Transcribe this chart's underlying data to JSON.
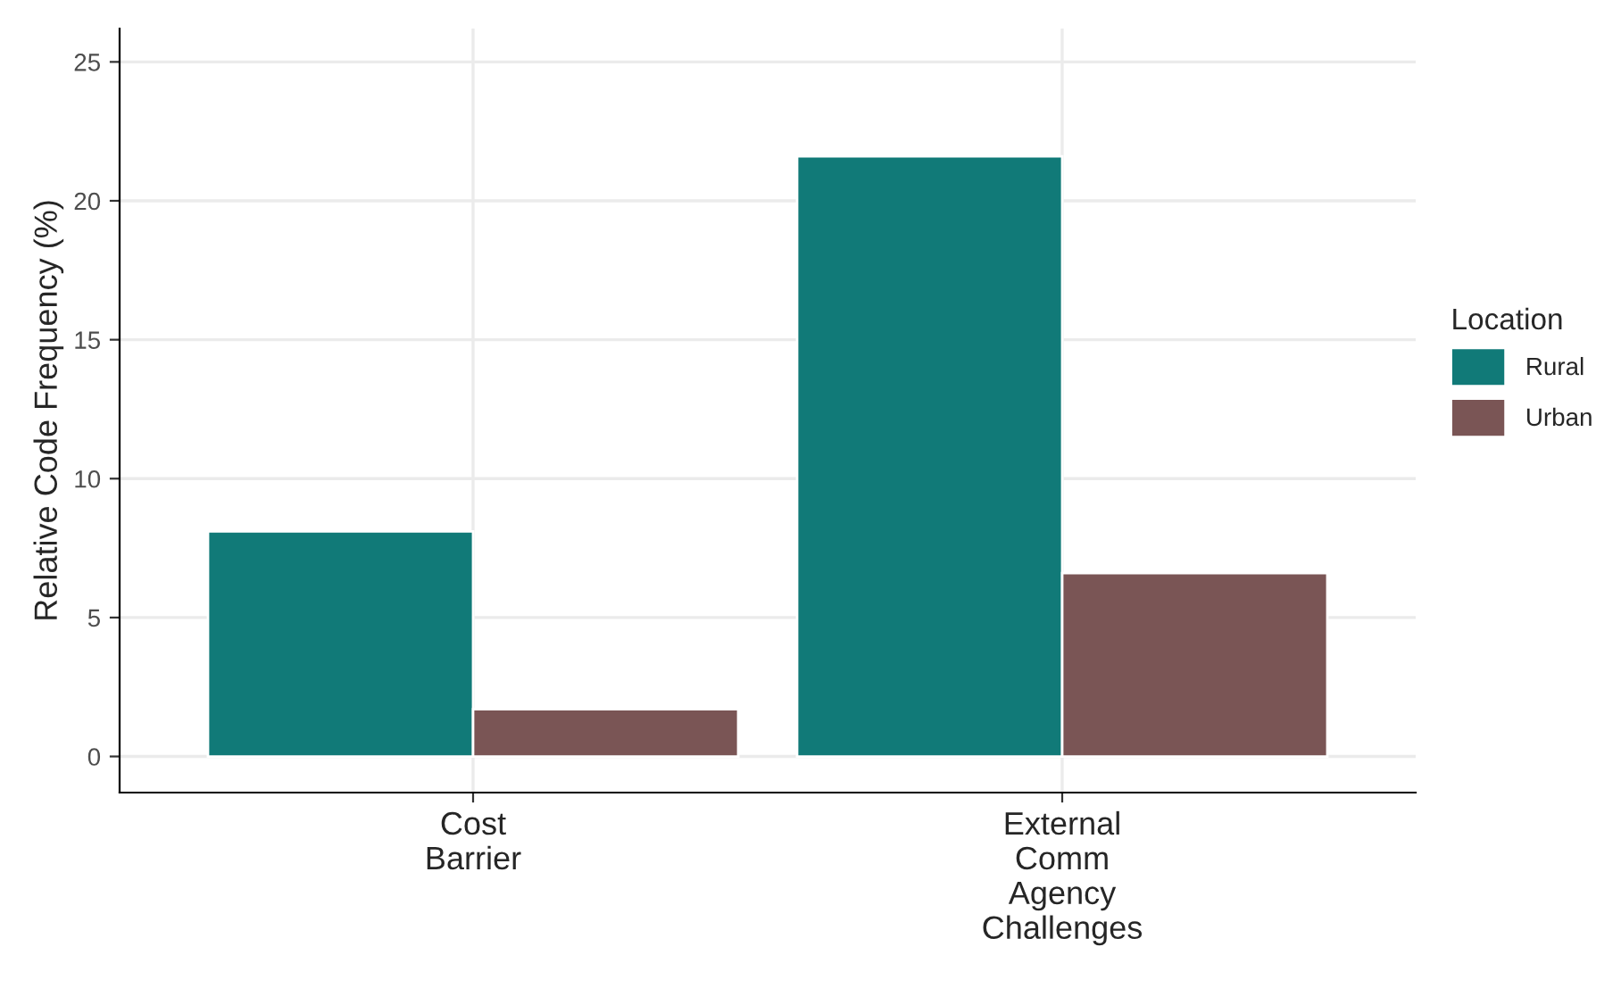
{
  "chart_data": {
    "type": "bar",
    "ylabel": "Relative Code Frequency (%)",
    "legend_title": "Location",
    "categories": [
      "Cost\nBarrier",
      "External\nComm\nAgency\nChallenges"
    ],
    "series": [
      {
        "name": "Rural",
        "color": "#117a78",
        "values": [
          8.1,
          21.6
        ]
      },
      {
        "name": "Urban",
        "color": "#7a5555",
        "values": [
          1.7,
          6.6
        ]
      }
    ],
    "ylim": [
      -1.3,
      26.2
    ],
    "yticks": [
      0,
      5,
      10,
      15,
      20,
      25
    ],
    "grid": true,
    "legend": "right"
  }
}
